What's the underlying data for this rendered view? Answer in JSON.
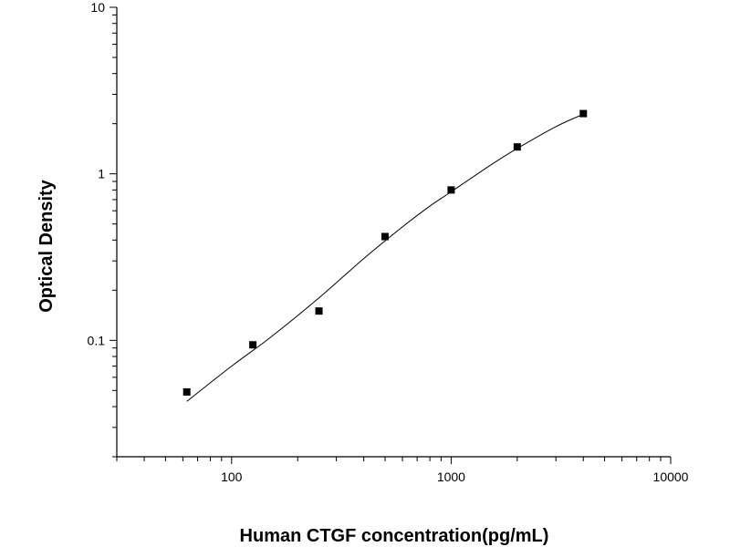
{
  "chart_data": {
    "type": "scatter",
    "title": "",
    "xlabel": "Human CTGF concentration(pg/mL)",
    "ylabel": "Optical Density",
    "xscale": "log",
    "yscale": "log",
    "xlim": [
      30,
      10000
    ],
    "ylim": [
      0.02,
      10
    ],
    "x_ticks": [
      {
        "value": 100,
        "label": "100"
      },
      {
        "value": 1000,
        "label": "1000"
      },
      {
        "value": 10000,
        "label": "10000"
      }
    ],
    "y_ticks": [
      {
        "value": 0.1,
        "label": "0.1"
      },
      {
        "value": 1,
        "label": "1"
      },
      {
        "value": 10,
        "label": "10"
      }
    ],
    "grid": false,
    "legend": "none",
    "series": [
      {
        "x": [
          62.5,
          125,
          250,
          500,
          1000,
          2000,
          4000
        ],
        "y": [
          0.049,
          0.094,
          0.15,
          0.42,
          0.8,
          1.45,
          2.3
        ],
        "marker": "square",
        "color": "#000000"
      }
    ],
    "fit_curve": {
      "x": [
        62.5,
        100,
        150,
        250,
        400,
        600,
        800,
        1000,
        1500,
        2000,
        3000,
        4000
      ],
      "y": [
        0.043,
        0.07,
        0.104,
        0.18,
        0.31,
        0.48,
        0.64,
        0.78,
        1.12,
        1.42,
        1.92,
        2.28
      ],
      "color": "#000000"
    }
  }
}
